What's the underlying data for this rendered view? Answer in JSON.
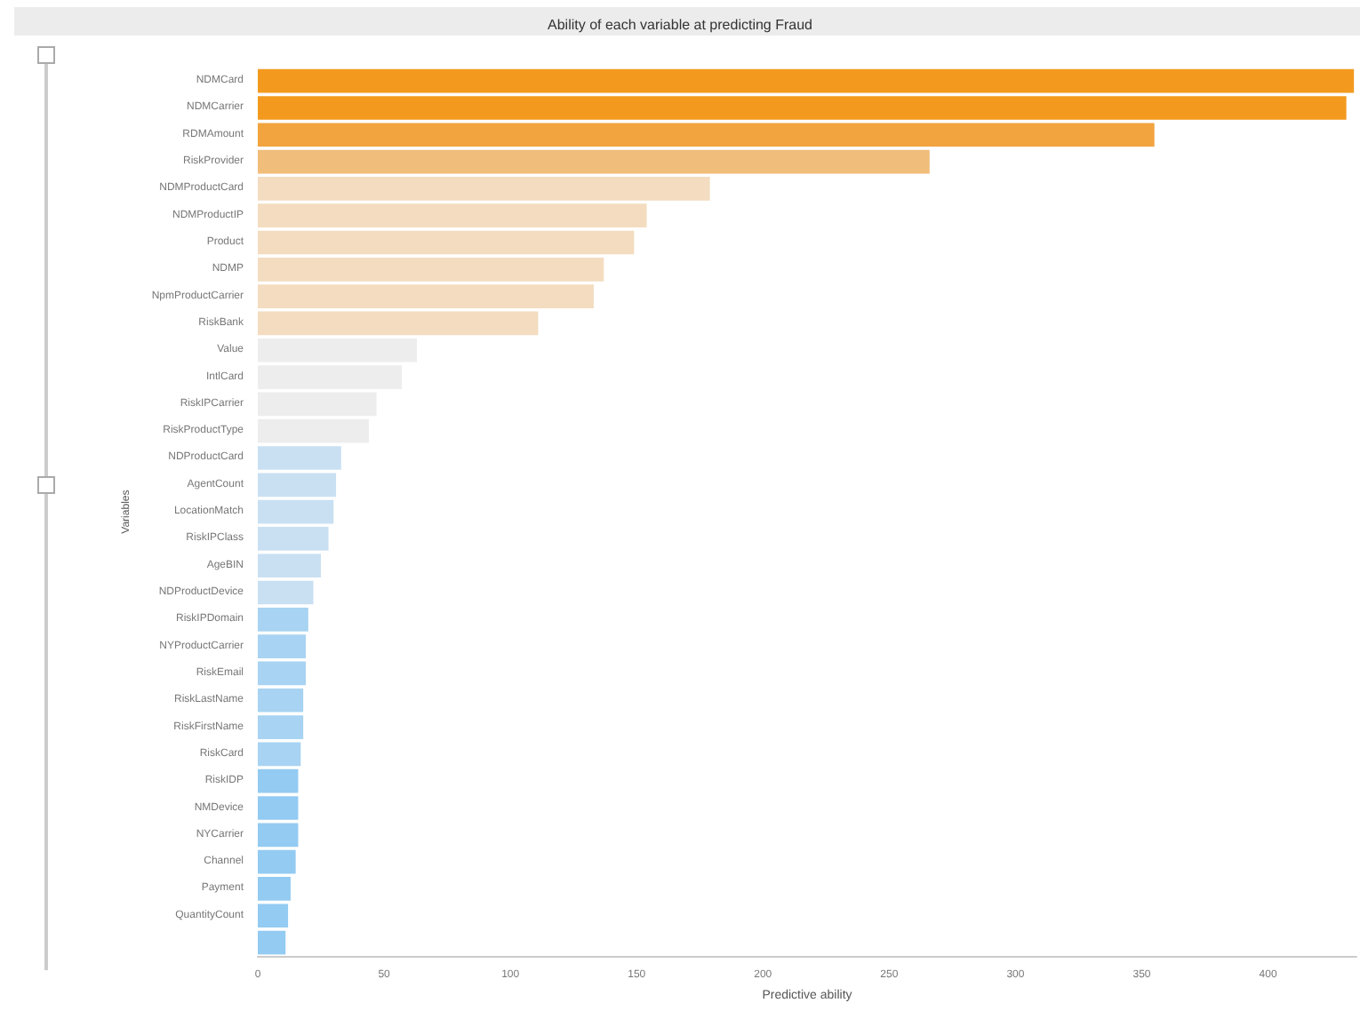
{
  "chart_data": {
    "type": "bar",
    "orientation": "horizontal",
    "title": "Ability of each variable at predicting Fraud",
    "xlabel": "Predictive ability",
    "ylabel": "Variables",
    "categories": [
      "NDMCard",
      "NDMCarrier",
      "RDMAmount",
      "RiskProvider",
      "NDMProductCard",
      "NDMProductIP",
      "Product",
      "NDMP",
      "NpmProductCarrier",
      "RiskBank",
      "Value",
      "IntlCard",
      "RiskIPCarrier",
      "RiskProductType",
      "NDProductCard",
      "AgentCount",
      "LocationMatch",
      "RiskIPClass",
      "AgeBIN",
      "NDProductDevice",
      "RiskIPDomain",
      "NYProductCarrier",
      "RiskEmail",
      "RiskLastName",
      "RiskFirstName",
      "RiskCard",
      "RiskIDP",
      "NMDevice",
      "NYCarrier",
      "Channel",
      "Payment",
      "QuantityCount",
      null
    ],
    "values": [
      434,
      431,
      355,
      266,
      179,
      154,
      149,
      137,
      133,
      111,
      63,
      57,
      47,
      44,
      33,
      31,
      30,
      28,
      25,
      22,
      20,
      19,
      19,
      18,
      18,
      17,
      16,
      16,
      16,
      15,
      13,
      12,
      11
    ],
    "colors": [
      "#f39a1e",
      "#f39a1e",
      "#f2a43e",
      "#f1bd7a",
      "#f3dcbf",
      "#f3dcbf",
      "#f3dcbf",
      "#f3dcbf",
      "#f3dcbf",
      "#f3dcbf",
      "#ededed",
      "#ededed",
      "#ededed",
      "#ededed",
      "#c9e0f3",
      "#c9e0f3",
      "#c9e0f3",
      "#c9e0f3",
      "#c9e0f3",
      "#c9e0f3",
      "#a8d3f2",
      "#a8d3f2",
      "#a8d3f2",
      "#a8d3f2",
      "#a8d3f2",
      "#a8d3f2",
      "#93cbf2",
      "#93cbf2",
      "#93cbf2",
      "#93cbf2",
      "#93cbf2",
      "#93cbf2",
      "#93cbf2"
    ],
    "xlim": [
      0,
      435
    ],
    "xticks": [
      0,
      50,
      100,
      150,
      200,
      250,
      300,
      350,
      400
    ],
    "grid": false
  }
}
